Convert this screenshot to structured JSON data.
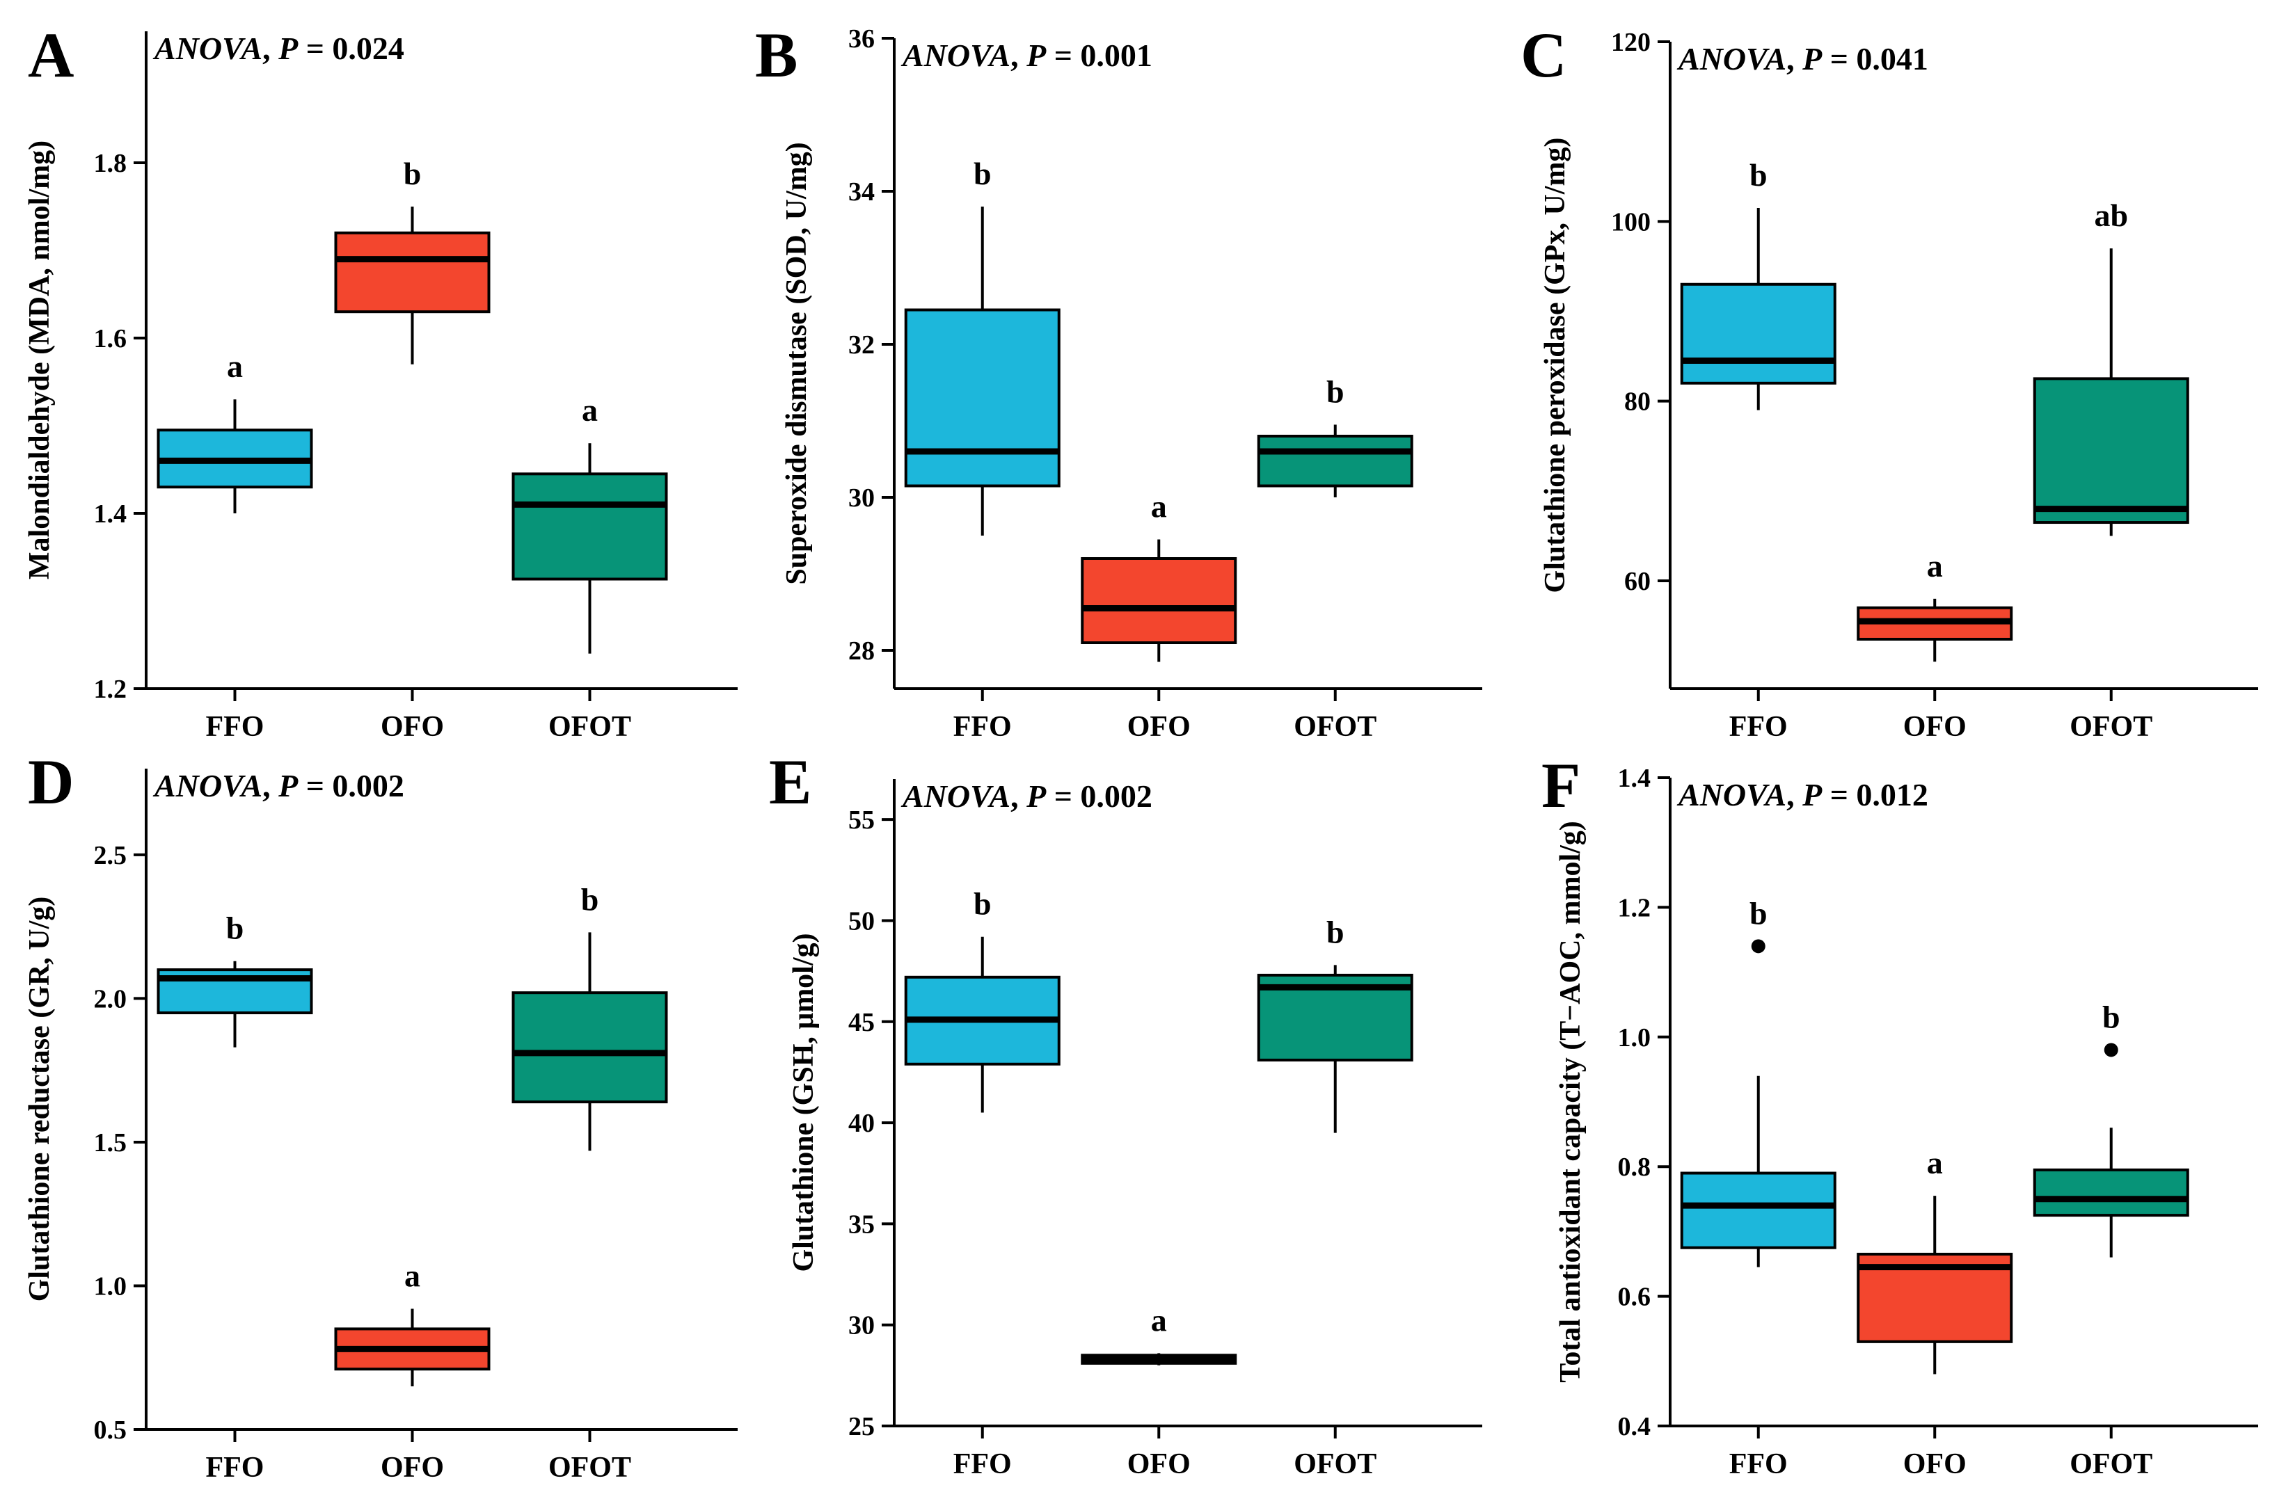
{
  "colors": {
    "FFO": "#1DB7DB",
    "OFO": "#F3462E",
    "OFOT": "#079478",
    "line": "#000000"
  },
  "chart_data": [
    {
      "type": "boxplot",
      "panel": "A",
      "anova_prefix": "ANOVA",
      "anova_suffix": ", P = 0.024",
      "ylabel": "Malondialdehyde (MDA, nmol/mg)",
      "ylim": [
        1.2,
        1.95
      ],
      "yticks": [
        1.2,
        1.4,
        1.6,
        1.8
      ],
      "tick_labels": [
        "1.2",
        "1.4",
        "1.6",
        "1.8"
      ],
      "categories": [
        "FFO",
        "OFO",
        "OFOT"
      ],
      "boxes": [
        {
          "name": "FFO",
          "whisker_low": 1.4,
          "q1": 1.43,
          "median": 1.46,
          "q3": 1.495,
          "whisker_high": 1.53,
          "outliers": [],
          "letter": "a"
        },
        {
          "name": "OFO",
          "whisker_low": 1.57,
          "q1": 1.63,
          "median": 1.69,
          "q3": 1.72,
          "whisker_high": 1.75,
          "outliers": [],
          "letter": "b"
        },
        {
          "name": "OFOT",
          "whisker_low": 1.24,
          "q1": 1.325,
          "median": 1.41,
          "q3": 1.445,
          "whisker_high": 1.48,
          "outliers": [],
          "letter": "a"
        }
      ]
    },
    {
      "type": "boxplot",
      "panel": "B",
      "anova_prefix": "ANOVA",
      "anova_suffix": ", P = 0.001",
      "ylabel": "Superoxide dismutase (SOD, U/mg)",
      "ylim": [
        27.5,
        36
      ],
      "yticks": [
        28,
        30,
        32,
        34,
        36
      ],
      "tick_labels": [
        "28",
        "30",
        "32",
        "34",
        "36"
      ],
      "categories": [
        "FFO",
        "OFO",
        "OFOT"
      ],
      "boxes": [
        {
          "name": "FFO",
          "whisker_low": 29.5,
          "q1": 30.15,
          "median": 30.6,
          "q3": 32.45,
          "whisker_high": 33.8,
          "outliers": [],
          "letter": "b"
        },
        {
          "name": "OFO",
          "whisker_low": 27.85,
          "q1": 28.1,
          "median": 28.55,
          "q3": 29.2,
          "whisker_high": 29.45,
          "outliers": [],
          "letter": "a"
        },
        {
          "name": "OFOT",
          "whisker_low": 30.0,
          "q1": 30.15,
          "median": 30.6,
          "q3": 30.8,
          "whisker_high": 30.95,
          "outliers": [],
          "letter": "b"
        }
      ]
    },
    {
      "type": "boxplot",
      "panel": "C",
      "anova_prefix": "ANOVA",
      "anova_suffix": ", P = 0.041",
      "ylabel": "Glutathione peroxidase (GPx, U/mg)",
      "ylim": [
        48,
        120
      ],
      "yticks": [
        60,
        80,
        100,
        120
      ],
      "tick_labels": [
        "60",
        "80",
        "100",
        "120"
      ],
      "categories": [
        "FFO",
        "OFO",
        "OFOT"
      ],
      "boxes": [
        {
          "name": "FFO",
          "whisker_low": 79,
          "q1": 82,
          "median": 84.5,
          "q3": 93,
          "whisker_high": 101.5,
          "outliers": [],
          "letter": "b"
        },
        {
          "name": "OFO",
          "whisker_low": 51,
          "q1": 53.5,
          "median": 55.5,
          "q3": 57,
          "whisker_high": 58,
          "outliers": [],
          "letter": "a"
        },
        {
          "name": "OFOT",
          "whisker_low": 65,
          "q1": 66.5,
          "median": 68,
          "q3": 82.5,
          "whisker_high": 97,
          "outliers": [],
          "letter": "ab"
        }
      ]
    },
    {
      "type": "boxplot",
      "panel": "D",
      "anova_prefix": "ANOVA",
      "anova_suffix": ", P = 0.002",
      "ylabel": "Glutathione reductase (GR, U/g)",
      "ylim": [
        0.5,
        2.8
      ],
      "yticks": [
        0.5,
        1.0,
        1.5,
        2.0,
        2.5
      ],
      "tick_labels": [
        "0.5",
        "1.0",
        "1.5",
        "2.0",
        "2.5"
      ],
      "categories": [
        "FFO",
        "OFO",
        "OFOT"
      ],
      "boxes": [
        {
          "name": "FFO",
          "whisker_low": 1.83,
          "q1": 1.95,
          "median": 2.07,
          "q3": 2.1,
          "whisker_high": 2.13,
          "outliers": [],
          "letter": "b"
        },
        {
          "name": "OFO",
          "whisker_low": 0.65,
          "q1": 0.71,
          "median": 0.78,
          "q3": 0.85,
          "whisker_high": 0.92,
          "outliers": [],
          "letter": "a"
        },
        {
          "name": "OFOT",
          "whisker_low": 1.47,
          "q1": 1.64,
          "median": 1.81,
          "q3": 2.02,
          "whisker_high": 2.23,
          "outliers": [],
          "letter": "b"
        }
      ]
    },
    {
      "type": "boxplot",
      "panel": "E",
      "anova_prefix": "ANOVA",
      "anova_suffix": ", P = 0.002",
      "ylabel": "Glutathione (GSH, μmol/g)",
      "ylim": [
        25,
        57
      ],
      "yticks": [
        25,
        30,
        35,
        40,
        45,
        50,
        55
      ],
      "tick_labels": [
        "25",
        "30",
        "35",
        "40",
        "45",
        "50",
        "55"
      ],
      "categories": [
        "FFO",
        "OFO",
        "OFOT"
      ],
      "boxes": [
        {
          "name": "FFO",
          "whisker_low": 40.5,
          "q1": 42.9,
          "median": 45.1,
          "q3": 47.2,
          "whisker_high": 49.2,
          "outliers": [],
          "letter": "b"
        },
        {
          "name": "OFO",
          "whisker_low": 28.0,
          "q1": 28.1,
          "median": 28.3,
          "q3": 28.5,
          "whisker_high": 28.6,
          "outliers": [],
          "letter": "a"
        },
        {
          "name": "OFOT",
          "whisker_low": 39.5,
          "q1": 43.1,
          "median": 46.7,
          "q3": 47.3,
          "whisker_high": 47.8,
          "outliers": [],
          "letter": "b"
        }
      ]
    },
    {
      "type": "boxplot",
      "panel": "F",
      "anova_prefix": "ANOVA",
      "anova_suffix": ", P = 0.012",
      "ylabel": "Total antioxidant capacity (T−AOC, mmol/g)",
      "ylim": [
        0.4,
        1.4
      ],
      "yticks": [
        0.4,
        0.6,
        0.8,
        1.0,
        1.2,
        1.4
      ],
      "tick_labels": [
        "0.4",
        "0.6",
        "0.8",
        "1.0",
        "1.2",
        "1.4"
      ],
      "categories": [
        "FFO",
        "OFO",
        "OFOT"
      ],
      "boxes": [
        {
          "name": "FFO",
          "whisker_low": 0.645,
          "q1": 0.675,
          "median": 0.74,
          "q3": 0.79,
          "whisker_high": 0.94,
          "outliers": [
            1.14
          ],
          "letter": "b"
        },
        {
          "name": "OFO",
          "whisker_low": 0.48,
          "q1": 0.53,
          "median": 0.645,
          "q3": 0.665,
          "whisker_high": 0.755,
          "outliers": [],
          "letter": "a"
        },
        {
          "name": "OFOT",
          "whisker_low": 0.66,
          "q1": 0.725,
          "median": 0.75,
          "q3": 0.795,
          "whisker_high": 0.86,
          "outliers": [
            0.98
          ],
          "letter": "b"
        }
      ]
    }
  ]
}
